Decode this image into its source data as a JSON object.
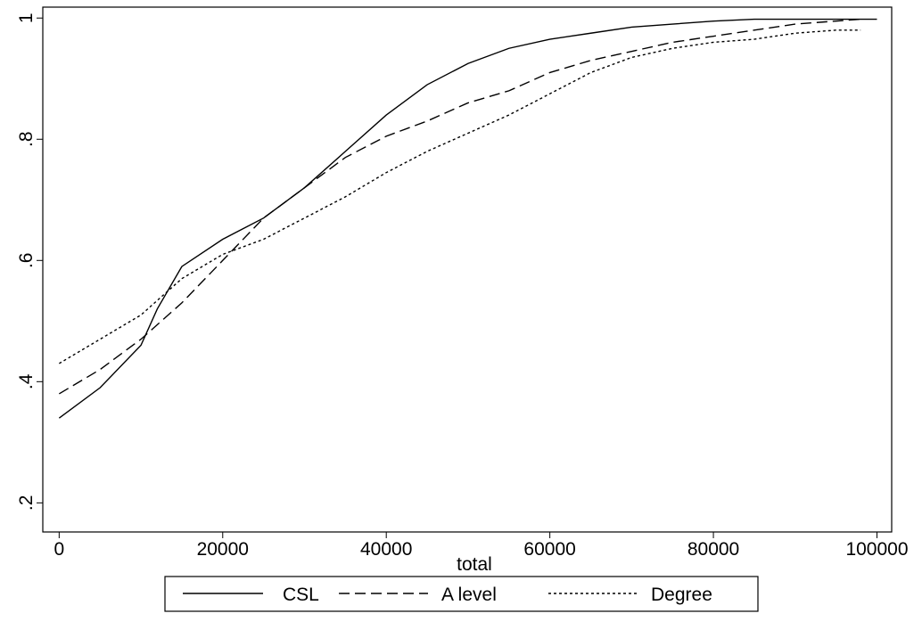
{
  "chart_data": {
    "type": "line",
    "xlabel": "total",
    "xlim": [
      -2000,
      101800
    ],
    "ylim": [
      0.152,
      1.018
    ],
    "xticks": [
      0,
      20000,
      40000,
      60000,
      80000,
      100000
    ],
    "yticks": [
      {
        "value": 0.2,
        "label": ".2"
      },
      {
        "value": 0.4,
        "label": ".4"
      },
      {
        "value": 0.6,
        "label": ".6"
      },
      {
        "value": 0.8,
        "label": ".8"
      },
      1
    ],
    "series": [
      {
        "name": "CSL",
        "color": "#000000",
        "style": "solid",
        "x": [
          0,
          5000,
          10000,
          12000,
          15000,
          20000,
          25000,
          30000,
          35000,
          40000,
          45000,
          50000,
          55000,
          60000,
          65000,
          70000,
          75000,
          80000,
          85000,
          90000,
          100000
        ],
        "values": [
          0.34,
          0.39,
          0.46,
          0.52,
          0.59,
          0.635,
          0.67,
          0.72,
          0.78,
          0.84,
          0.89,
          0.925,
          0.95,
          0.965,
          0.975,
          0.985,
          0.99,
          0.995,
          0.998,
          0.998,
          0.998
        ]
      },
      {
        "name": "A level",
        "color": "#000000",
        "style": "dashed",
        "x": [
          0,
          5000,
          10000,
          15000,
          20000,
          25000,
          30000,
          35000,
          40000,
          45000,
          50000,
          55000,
          60000,
          65000,
          70000,
          75000,
          80000,
          85000,
          90000,
          95000,
          98000
        ],
        "values": [
          0.38,
          0.42,
          0.47,
          0.53,
          0.6,
          0.67,
          0.72,
          0.77,
          0.805,
          0.83,
          0.86,
          0.88,
          0.91,
          0.93,
          0.945,
          0.96,
          0.97,
          0.98,
          0.99,
          0.995,
          0.998
        ]
      },
      {
        "name": "Degree",
        "color": "#000000",
        "style": "dotted",
        "x": [
          0,
          5000,
          10000,
          15000,
          20000,
          25000,
          30000,
          35000,
          40000,
          45000,
          50000,
          55000,
          60000,
          65000,
          70000,
          75000,
          80000,
          85000,
          90000,
          95000,
          98000
        ],
        "values": [
          0.43,
          0.47,
          0.51,
          0.57,
          0.61,
          0.635,
          0.67,
          0.705,
          0.745,
          0.78,
          0.81,
          0.84,
          0.875,
          0.91,
          0.935,
          0.95,
          0.96,
          0.965,
          0.975,
          0.98,
          0.98
        ]
      }
    ],
    "legend": "bottom"
  }
}
